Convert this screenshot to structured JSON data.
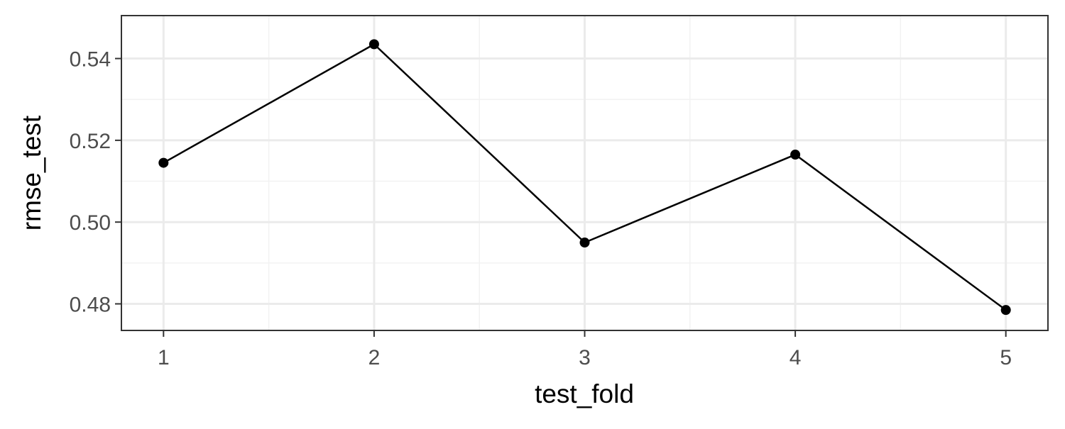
{
  "chart_data": {
    "type": "line",
    "title": "",
    "xlabel": "test_fold",
    "ylabel": "rmse_test",
    "x": [
      1,
      2,
      3,
      4,
      5
    ],
    "series": [
      {
        "values": [
          0.5145,
          0.5435,
          0.495,
          0.5165,
          0.4785
        ]
      }
    ],
    "xlim": [
      0.8,
      5.2
    ],
    "ylim": [
      0.4735,
      0.5505
    ],
    "x_ticks": [
      1,
      2,
      3,
      4,
      5
    ],
    "x_tick_labels": [
      "1",
      "2",
      "3",
      "4",
      "5"
    ],
    "y_ticks": [
      0.48,
      0.5,
      0.52,
      0.54
    ],
    "y_tick_labels": [
      "0.48",
      "0.50",
      "0.52",
      "0.54"
    ],
    "grid": true,
    "legend": "none",
    "colors": {
      "line": "#000000",
      "point": "#000000",
      "grid_major": "#ebebeb",
      "grid_minor": "#f2f2f2",
      "panel_border": "#333333",
      "tick_text": "#4d4d4d"
    }
  }
}
